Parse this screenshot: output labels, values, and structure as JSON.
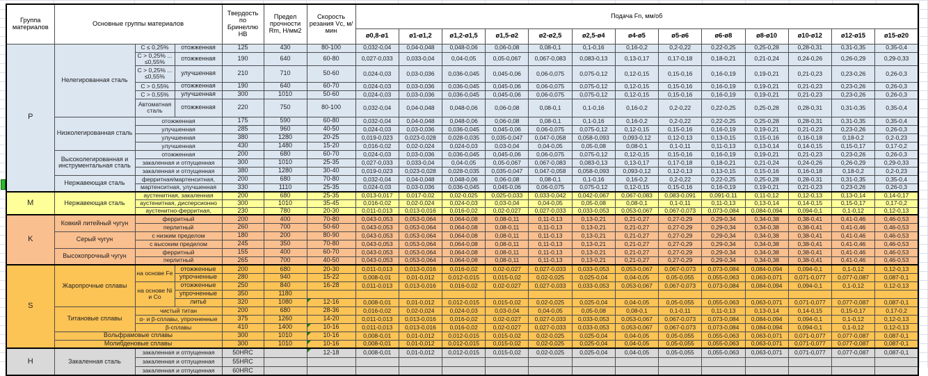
{
  "header": {
    "group": "Группа материалов",
    "main": "Основные группы материалов",
    "hardness": "Твердость по Бринеллю НВ",
    "strength": "Предел прочности Rm, Н/мм2",
    "speed": "Скорость резания Vc, м/мин",
    "feed": "Подача Fn, мм/об"
  },
  "columns": [
    "ø0,8-ø1",
    "ø1-ø1,2",
    "ø1,2-ø1,5",
    "ø1,5-ø2",
    "ø2-ø2,5",
    "ø2,5-ø4",
    "ø4-ø5",
    "ø5-ø6",
    "ø6-ø8",
    "ø8-ø10",
    "ø10-ø12",
    "ø12-ø15",
    "ø15-ø20"
  ],
  "colors": {
    "p": "#dce6f1",
    "m": "#ffff99",
    "k": "#fabf8f",
    "s": "#fcc355",
    "h": "#d9d9d9"
  },
  "feed_templates": {
    "A": [
      "0,032-0,04",
      "0,04-0,048",
      "0,048-0,06",
      "0,06-0,08",
      "0,08-0,1",
      "0,1-0,16",
      "0,16-0,2",
      "0,2-0,22",
      "0,22-0,25",
      "0,25-0,28",
      "0,28-0,31",
      "0,31-0,35",
      "0,35-0,4"
    ],
    "B": [
      "0,027-0,033",
      "0,033-0,04",
      "0,04-0,05",
      "0,05-0,067",
      "0,067-0,083",
      "0,083-0,13",
      "0,13-0,17",
      "0,17-0,18",
      "0,18-0,21",
      "0,21-0,24",
      "0,24-0,26",
      "0,26-0,29",
      "0,29-0,33"
    ],
    "C": [
      "0,024-0,03",
      "0,03-0,036",
      "0,036-0,045",
      "0,045-0,06",
      "0,06-0,075",
      "0,075-0,12",
      "0,12-0,15",
      "0,15-0,16",
      "0,16-0,19",
      "0,19-0,21",
      "0,21-0,23",
      "0,23-0,26",
      "0,26-0,3"
    ],
    "D": [
      "0,019-0,023",
      "0,023-0,028",
      "0,028-0,035",
      "0,035-0,047",
      "0,047-0,058",
      "0,058-0,093",
      "0,093-0,12",
      "0,12-0,13",
      "0,13-0,15",
      "0,15-0,16",
      "0,16-0,18",
      "0,18-0,2",
      "0,2-0,23"
    ],
    "E": [
      "0,016-0,02",
      "0,02-0,024",
      "0,024-0,03",
      "0,03-0,04",
      "0,04-0,05",
      "0,05-0,08",
      "0,08-0,1",
      "0,1-0,11",
      "0,11-0,13",
      "0,13-0,14",
      "0,14-0,15",
      "0,15-0,17",
      "0,17-0,2"
    ],
    "F": [
      "0,013-0,017",
      "0,017-0,02",
      "0,02-0,025",
      "0,025-0,033",
      "0,033-0,042",
      "0,042-0,067",
      "0,067-0,083",
      "0,083-0,091",
      "0,091-0,11",
      "0,11-0,12",
      "0,12-0,13",
      "0,13-0,14",
      "0,14-0,17"
    ],
    "G": [
      "0,011-0,013",
      "0,013-0,016",
      "0,016-0,02",
      "0,02-0,027",
      "0,027-0,033",
      "0,033-0,053",
      "0,053-0,067",
      "0,067-0,073",
      "0,073-0,084",
      "0,084-0,094",
      "0,094-0,1",
      "0,1-0,12",
      "0,12-0,13"
    ],
    "H8": [
      "0,008-0,01",
      "0,01-0,012",
      "0,012-0,015",
      "0,015-0,02",
      "0,02-0,025",
      "0,025-0,04",
      "0,04-0,05",
      "0,05-0,055",
      "0,055-0,063",
      "0,063-0,071",
      "0,071-0,077",
      "0,077-0,087",
      "0,087-0,1"
    ],
    "K": [
      "0,043-0,053",
      "0,053-0,064",
      "0,064-0,08",
      "0,08-0,11",
      "0,11-0,13",
      "0,13-0,21",
      "0,21-0,27",
      "0,27-0,29",
      "0,29-0,34",
      "0,34-0,38",
      "0,38-0,41",
      "0,41-0,46",
      "0,46-0,53"
    ]
  },
  "rows": [
    {
      "h": 12,
      "bg": "p",
      "g": [
        "P",
        15
      ],
      "f": [
        "Нелегированная сталь",
        6
      ],
      "s": [
        "C ≤ 0,25%",
        1
      ],
      "t": "отожженная",
      "hb": "125",
      "rm": "430",
      "vc": "80-100",
      "fe": "A"
    },
    {
      "h": 19,
      "bg": "p",
      "s": [
        "C > 0,25% ... ≤0,55%",
        1
      ],
      "t": "отожженная",
      "hb": "190",
      "rm": "640",
      "vc": "60-80",
      "fe": "B"
    },
    {
      "h": 24,
      "bg": "p",
      "s": [
        "C > 0,25% ... ≤0,55%",
        1
      ],
      "t": "улучшенная",
      "hb": "210",
      "rm": "710",
      "vc": "50-60",
      "fe": "C"
    },
    {
      "h": 12,
      "bg": "p",
      "s": [
        "C > 0,55%",
        1
      ],
      "t": "отожженная",
      "hb": "190",
      "rm": "640",
      "vc": "60-70",
      "fe": "C"
    },
    {
      "h": 12,
      "bg": "p",
      "s": [
        "C > 0,55%",
        1
      ],
      "t": "улучшенная",
      "hb": "300",
      "rm": "1010",
      "vc": "50-60",
      "fe": "C"
    },
    {
      "h": 26,
      "bg": "p",
      "s": [
        "Автоматная сталь",
        1
      ],
      "t": "отожженная",
      "hb": "220",
      "rm": "750",
      "vc": "80-100",
      "fe": "A"
    },
    {
      "h": 12,
      "bg": "p",
      "f": [
        "Низколегированная сталь",
        4
      ],
      "w": "отожженная",
      "hb": "175",
      "rm": "590",
      "vc": "60-80",
      "fe": "A"
    },
    {
      "h": 12,
      "bg": "p",
      "w": "улучшенная",
      "hb": "285",
      "rm": "960",
      "vc": "40-50",
      "fe": "C"
    },
    {
      "h": 12,
      "bg": "p",
      "w": "улучшенная",
      "hb": "380",
      "rm": "1280",
      "vc": "20-25",
      "fe": "D"
    },
    {
      "h": 12,
      "bg": "p",
      "w": "улучшенная",
      "hb": "430",
      "rm": "1480",
      "vc": "15-20",
      "fe": "E"
    },
    {
      "h": 12,
      "bg": "p",
      "f": [
        "Высоколегированная и инструментальная сталь",
        3
      ],
      "w": "отожженная",
      "hb": "200",
      "rm": "680",
      "vc": "60-70",
      "fe": "C"
    },
    {
      "h": 12,
      "bg": "p",
      "w": "закаленная и отпущенная",
      "hb": "300",
      "rm": "1010",
      "vc": "25-35",
      "fe": "B"
    },
    {
      "h": 12,
      "bg": "p",
      "w": "закаленная и отпущенная",
      "hb": "380",
      "rm": "1280",
      "vc": "30-40",
      "fe": "D"
    },
    {
      "h": 12,
      "bg": "p",
      "f": [
        "Нержавеющая сталь",
        2
      ],
      "w": "ферритная/мартенситная,",
      "hb": "200",
      "rm": "680",
      "vc": "70-80",
      "fe": "A"
    },
    {
      "h": 12,
      "bg": "p",
      "w": "мартенситная, улучшенная",
      "hb": "330",
      "rm": "1110",
      "vc": "25-35",
      "fe": "C"
    },
    {
      "h": 11,
      "bg": "m",
      "sec": true,
      "g": [
        "M",
        3
      ],
      "f": [
        "Нержавеющая сталь",
        3
      ],
      "w": "аустенитная, закаленная",
      "hb": "200",
      "rm": "680",
      "vc": "25-35",
      "fe": "F"
    },
    {
      "h": 11,
      "bg": "m",
      "w": "аустенитная, дисперсионно",
      "hb": "300",
      "rm": "1010",
      "vc": "35-45",
      "fe": "E"
    },
    {
      "h": 11,
      "bg": "m",
      "w": "аустенитно-ферритная,",
      "hb": "230",
      "rm": "780",
      "vc": "20-30",
      "fe": "G"
    },
    {
      "h": 12,
      "bg": "k",
      "sec": true,
      "g": [
        "K",
        6
      ],
      "f": [
        "Ковкий литейный чугун",
        2
      ],
      "w": "ферритный",
      "hb": "200",
      "rm": "400",
      "vc": "70-80",
      "fe": "K"
    },
    {
      "h": 12,
      "bg": "k",
      "w": "перлитный",
      "hb": "260",
      "rm": "700",
      "vc": "50-60",
      "fe": "K"
    },
    {
      "h": 12,
      "bg": "k",
      "f": [
        "Серый чугун",
        2
      ],
      "w": "с низким пределом",
      "hb": "180",
      "rm": "200",
      "vc": "80-90",
      "fe": "K"
    },
    {
      "h": 12,
      "bg": "k",
      "w": "с высоким пределом",
      "hb": "245",
      "rm": "350",
      "vc": "70-80",
      "fe": "K"
    },
    {
      "h": 12,
      "bg": "k",
      "f": [
        "Высокопрочный чугун",
        2
      ],
      "w": "ферритный",
      "hb": "155",
      "rm": "400",
      "vc": "60-70",
      "fe": "K"
    },
    {
      "h": 12,
      "bg": "k",
      "w": "перлитный",
      "hb": "265",
      "rm": "700",
      "vc": "40-50",
      "fe": "K"
    },
    {
      "h": 12,
      "bg": "s",
      "sec": true,
      "g": [
        "S",
        10
      ],
      "f": [
        "Жаропрочные сплавы",
        5
      ],
      "s": [
        "на основе Fe",
        2
      ],
      "t": "отожженные",
      "hb": "200",
      "rm": "680",
      "vc": "20-30",
      "fe": "G"
    },
    {
      "h": 12,
      "bg": "s",
      "t": "упрочненные",
      "hb": "280",
      "rm": "940",
      "vc": "15-22",
      "fe": "H8"
    },
    {
      "h": 12,
      "bg": "s",
      "s": [
        "на основе Ni и Co",
        3
      ],
      "t": "отожженные",
      "hb": "250",
      "rm": "840",
      "vc": "16-28",
      "fe": "G"
    },
    {
      "h": 12,
      "bg": "s",
      "t": "упрочненные",
      "hb": "350",
      "rm": "1180",
      "vc": "",
      "fe": null
    },
    {
      "h": 12,
      "bg": "s",
      "t": "литьё",
      "hb": "320",
      "rm": "1080",
      "vc": "12-16",
      "flag": true,
      "fe": "H8"
    },
    {
      "h": 12,
      "bg": "s",
      "f": [
        "Титановые сплавы",
        3
      ],
      "w": "чистый титан",
      "hb": "200",
      "rm": "680",
      "vc": "28-36",
      "fe": "E"
    },
    {
      "h": 12,
      "bg": "s",
      "w": "α- и β-сплавы, упрочненные",
      "hb": "375",
      "rm": "1260",
      "vc": "14-20",
      "fe": "G"
    },
    {
      "h": 12,
      "bg": "s",
      "w": "β-сплавы",
      "hb": "410",
      "rm": "1400",
      "vc": "10-16",
      "flag": true,
      "fe": "G"
    },
    {
      "h": 12,
      "bg": "s",
      "fw": "Вольфрамовые сплавы",
      "hb": "300",
      "rm": "1010",
      "vc": "10-16",
      "flag": true,
      "fe": "H8"
    },
    {
      "h": 12,
      "bg": "s",
      "fw": "Молибденовые сплавы",
      "hb": "300",
      "rm": "1010",
      "vc": "10-16",
      "flag": true,
      "fe": "H8"
    },
    {
      "h": 13,
      "bg": "h",
      "sec": true,
      "g": [
        "H",
        3
      ],
      "f": [
        "Закаленная сталь",
        3
      ],
      "w": "закаленная и отпущенная",
      "hb": "50HRC",
      "rm": "",
      "vc": "12-18",
      "flag": true,
      "fe": "H8"
    },
    {
      "h": 13,
      "bg": "h",
      "w": "закаленная и отпущенная",
      "hb": "55HRC",
      "rm": "",
      "vc": "",
      "fe": null
    },
    {
      "h": 13,
      "bg": "h",
      "w": "закаленная и отпущенная",
      "hb": "60HRC",
      "rm": "",
      "vc": "",
      "fe": null
    }
  ]
}
